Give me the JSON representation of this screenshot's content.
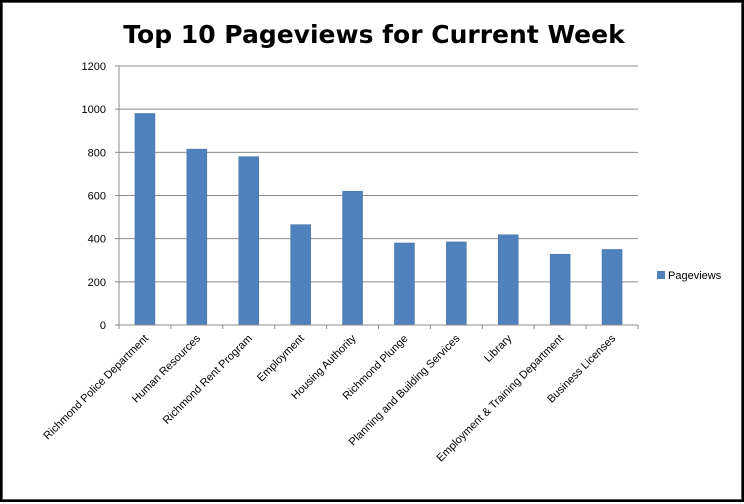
{
  "chart_data": {
    "type": "bar",
    "title": "Top 10 Pageviews for Current Week",
    "xlabel": "",
    "ylabel": "",
    "categories": [
      "Richmond Police Department",
      "Human Resources",
      "Richmond Rent Program",
      "Employment",
      "Housing Authority",
      "Richmond Plunge",
      "Planning and Building Services",
      "Library",
      "Employment & Training Department",
      "Business Licenses"
    ],
    "series": [
      {
        "name": "Pageviews",
        "color": "#4f81bd",
        "values": [
          980,
          815,
          780,
          465,
          620,
          380,
          385,
          418,
          328,
          350
        ]
      }
    ],
    "ylim": [
      0,
      1200
    ],
    "yticks": [
      "0",
      "200",
      "400",
      "600",
      "800",
      "1000",
      "1200"
    ],
    "grid": true,
    "legend_position": "right"
  }
}
